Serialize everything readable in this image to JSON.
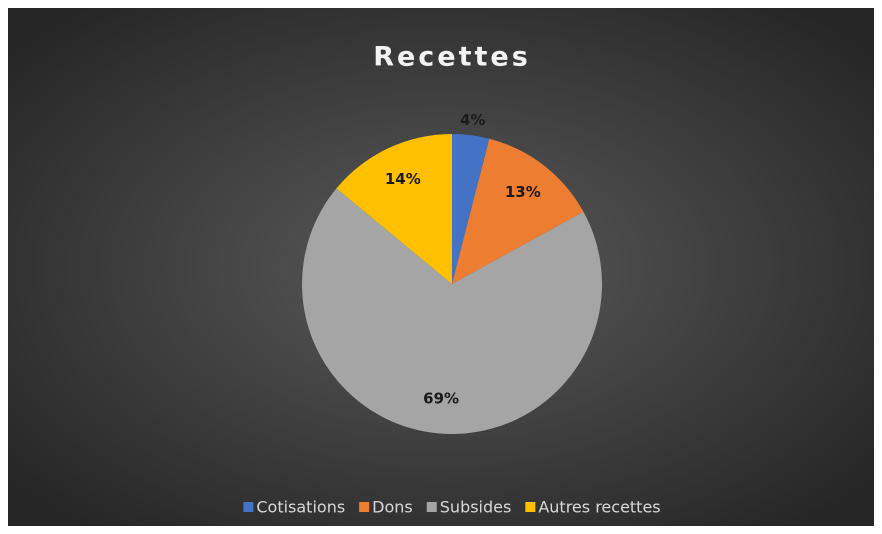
{
  "chart_data": {
    "type": "pie",
    "title": "Recettes",
    "categories": [
      "Cotisations",
      "Dons",
      "Subsides",
      "Autres recettes"
    ],
    "values": [
      4,
      13,
      69,
      14
    ],
    "value_labels": [
      "4%",
      "13%",
      "69%",
      "14%"
    ],
    "colors": [
      "#4472c4",
      "#ed7d31",
      "#a5a5a5",
      "#ffc000"
    ],
    "legend": "bottom"
  }
}
